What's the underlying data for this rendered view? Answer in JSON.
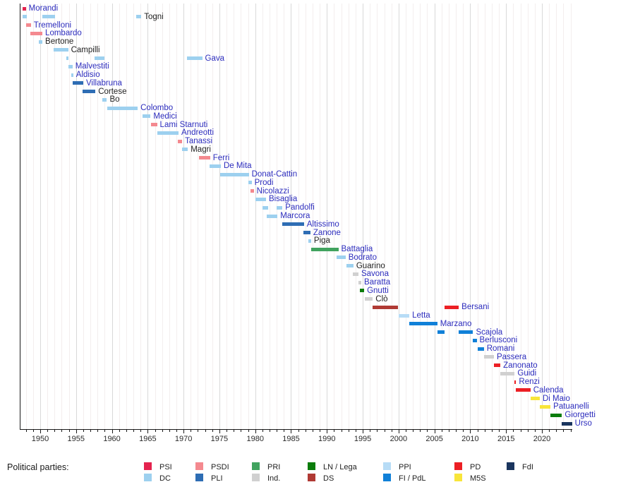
{
  "legend": {
    "heading": "Political parties:",
    "rows": [
      [
        "PSI",
        "PSDI",
        "PRI",
        "LN",
        "PPI",
        "PD",
        "FdI"
      ],
      [
        "DC",
        "PLI",
        "IND",
        "DS",
        "FI",
        "M5S"
      ]
    ]
  },
  "chart_data": {
    "type": "timeline",
    "title": "",
    "xlabel": "",
    "ylabel": "",
    "axis": {
      "year_start": 1947.2,
      "year_end": 2024.2,
      "tick_years": [
        1950,
        1955,
        1960,
        1965,
        1970,
        1975,
        1980,
        1985,
        1990,
        1995,
        2000,
        2005,
        2010,
        2015,
        2020
      ],
      "minor_tick_step": 1,
      "grid": "vertical-yearly"
    },
    "parties": {
      "PSI": {
        "label": "PSI",
        "color": "#e4234e"
      },
      "PSDI": {
        "label": "PSDI",
        "color": "#f4898f"
      },
      "PRI": {
        "label": "PRI",
        "color": "#41a35f"
      },
      "LN": {
        "label": "LN / Lega",
        "color": "#0b7c0b"
      },
      "PPI": {
        "label": "PPI",
        "color": "#b7dcf6"
      },
      "PD": {
        "label": "PD",
        "color": "#ec1f24"
      },
      "FdI": {
        "label": "FdI",
        "color": "#1a355e"
      },
      "DC": {
        "label": "DC",
        "color": "#9dd0ef"
      },
      "PLI": {
        "label": "PLI",
        "color": "#2e6db4"
      },
      "IND": {
        "label": "Ind.",
        "color": "#d0d0d0"
      },
      "DS": {
        "label": "DS",
        "color": "#b03a34"
      },
      "FI": {
        "label": "FI / PdL",
        "color": "#1080d8"
      },
      "M5S": {
        "label": "M5S",
        "color": "#f8e53a"
      }
    },
    "ministers": [
      {
        "name": "Morandi",
        "link": true,
        "terms": [
          {
            "start": 1947.5,
            "end": 1948.0,
            "party": "PSI"
          }
        ]
      },
      {
        "name": "Togni",
        "link": false,
        "terms": [
          {
            "start": 1947.5,
            "end": 1948.1,
            "party": "DC"
          },
          {
            "start": 1950.3,
            "end": 1952.1,
            "party": "DC"
          },
          {
            "start": 1963.4,
            "end": 1964.1,
            "party": "DC"
          }
        ]
      },
      {
        "name": "Tremelloni",
        "link": true,
        "terms": [
          {
            "start": 1948.0,
            "end": 1948.7,
            "party": "PSDI"
          }
        ]
      },
      {
        "name": "Lombardo",
        "link": true,
        "terms": [
          {
            "start": 1948.6,
            "end": 1950.3,
            "party": "PSDI"
          }
        ]
      },
      {
        "name": "Bertone",
        "link": false,
        "terms": [
          {
            "start": 1949.8,
            "end": 1950.3,
            "party": "DC"
          }
        ]
      },
      {
        "name": "Campilli",
        "link": false,
        "terms": [
          {
            "start": 1951.9,
            "end": 1953.9,
            "party": "DC"
          }
        ]
      },
      {
        "name": "Gava",
        "link": true,
        "terms": [
          {
            "start": 1953.6,
            "end": 1953.9,
            "party": "DC"
          },
          {
            "start": 1957.6,
            "end": 1959.0,
            "party": "DC"
          },
          {
            "start": 1970.5,
            "end": 1972.6,
            "party": "DC"
          }
        ]
      },
      {
        "name": "Malvestiti",
        "link": true,
        "terms": [
          {
            "start": 1953.9,
            "end": 1954.5,
            "party": "DC"
          }
        ]
      },
      {
        "name": "Aldisio",
        "link": true,
        "terms": [
          {
            "start": 1954.3,
            "end": 1954.6,
            "party": "DC"
          }
        ]
      },
      {
        "name": "Villabruna",
        "link": true,
        "terms": [
          {
            "start": 1954.5,
            "end": 1956.0,
            "party": "PLI"
          }
        ]
      },
      {
        "name": "Cortese",
        "link": false,
        "terms": [
          {
            "start": 1955.9,
            "end": 1957.7,
            "party": "PLI"
          }
        ]
      },
      {
        "name": "Bo",
        "link": false,
        "terms": [
          {
            "start": 1958.7,
            "end": 1959.3,
            "party": "DC"
          }
        ]
      },
      {
        "name": "Colombo",
        "link": true,
        "terms": [
          {
            "start": 1959.4,
            "end": 1963.6,
            "party": "DC"
          }
        ]
      },
      {
        "name": "Medici",
        "link": true,
        "terms": [
          {
            "start": 1964.3,
            "end": 1965.4,
            "party": "DC"
          }
        ]
      },
      {
        "name": "Lami Starnuti",
        "link": true,
        "terms": [
          {
            "start": 1965.5,
            "end": 1966.3,
            "party": "PSDI"
          }
        ]
      },
      {
        "name": "Andreotti",
        "link": true,
        "terms": [
          {
            "start": 1966.3,
            "end": 1969.3,
            "party": "DC"
          }
        ]
      },
      {
        "name": "Tanassi",
        "link": true,
        "terms": [
          {
            "start": 1969.2,
            "end": 1969.8,
            "party": "PSDI"
          }
        ]
      },
      {
        "name": "Magri",
        "link": false,
        "terms": [
          {
            "start": 1969.8,
            "end": 1970.6,
            "party": "DC"
          }
        ]
      },
      {
        "name": "Ferri",
        "link": true,
        "terms": [
          {
            "start": 1972.2,
            "end": 1973.7,
            "party": "PSDI"
          }
        ]
      },
      {
        "name": "De Mita",
        "link": true,
        "terms": [
          {
            "start": 1973.6,
            "end": 1975.2,
            "party": "DC"
          }
        ]
      },
      {
        "name": "Donat-Cattin",
        "link": true,
        "terms": [
          {
            "start": 1975.1,
            "end": 1979.1,
            "party": "DC"
          }
        ]
      },
      {
        "name": "Prodi",
        "link": true,
        "terms": [
          {
            "start": 1979.0,
            "end": 1979.5,
            "party": "DC"
          }
        ]
      },
      {
        "name": "Nicolazzi",
        "link": true,
        "terms": [
          {
            "start": 1979.3,
            "end": 1979.8,
            "party": "PSDI"
          }
        ]
      },
      {
        "name": "Bisaglia",
        "link": true,
        "terms": [
          {
            "start": 1980.0,
            "end": 1981.5,
            "party": "DC"
          }
        ]
      },
      {
        "name": "Pandolfi",
        "link": true,
        "terms": [
          {
            "start": 1981.0,
            "end": 1981.8,
            "party": "DC"
          },
          {
            "start": 1983.0,
            "end": 1983.8,
            "party": "DC"
          }
        ]
      },
      {
        "name": "Marcora",
        "link": true,
        "terms": [
          {
            "start": 1981.6,
            "end": 1983.1,
            "party": "DC"
          }
        ]
      },
      {
        "name": "Altissimo",
        "link": true,
        "terms": [
          {
            "start": 1983.8,
            "end": 1986.8,
            "party": "PLI"
          }
        ]
      },
      {
        "name": "Zanone",
        "link": true,
        "terms": [
          {
            "start": 1986.7,
            "end": 1987.7,
            "party": "PLI"
          }
        ]
      },
      {
        "name": "Piga",
        "link": false,
        "terms": [
          {
            "start": 1987.4,
            "end": 1987.8,
            "party": "DC"
          }
        ]
      },
      {
        "name": "Battaglia",
        "link": true,
        "terms": [
          {
            "start": 1987.8,
            "end": 1991.6,
            "party": "PRI"
          }
        ]
      },
      {
        "name": "Bodrato",
        "link": true,
        "terms": [
          {
            "start": 1991.4,
            "end": 1992.6,
            "party": "DC"
          }
        ]
      },
      {
        "name": "Guarino",
        "link": false,
        "terms": [
          {
            "start": 1992.7,
            "end": 1993.7,
            "party": "DC"
          }
        ]
      },
      {
        "name": "Savona",
        "link": true,
        "terms": [
          {
            "start": 1993.6,
            "end": 1994.4,
            "party": "IND"
          }
        ]
      },
      {
        "name": "Baratta",
        "link": true,
        "terms": [
          {
            "start": 1994.4,
            "end": 1994.8,
            "party": "IND"
          }
        ]
      },
      {
        "name": "Gnutti",
        "link": true,
        "terms": [
          {
            "start": 1994.6,
            "end": 1995.2,
            "party": "LN"
          }
        ]
      },
      {
        "name": "Clò",
        "link": false,
        "terms": [
          {
            "start": 1995.3,
            "end": 1996.4,
            "party": "IND"
          }
        ]
      },
      {
        "name": "Bersani",
        "link": true,
        "terms": [
          {
            "start": 1996.4,
            "end": 1999.9,
            "party": "DS"
          },
          {
            "start": 2006.4,
            "end": 2008.4,
            "party": "PD"
          }
        ]
      },
      {
        "name": "Letta",
        "link": true,
        "terms": [
          {
            "start": 2000.0,
            "end": 2001.5,
            "party": "PPI"
          }
        ]
      },
      {
        "name": "Marzano",
        "link": true,
        "terms": [
          {
            "start": 2001.5,
            "end": 2005.4,
            "party": "FI"
          }
        ]
      },
      {
        "name": "Scajola",
        "link": true,
        "terms": [
          {
            "start": 2005.4,
            "end": 2006.4,
            "party": "FI"
          },
          {
            "start": 2008.4,
            "end": 2010.4,
            "party": "FI"
          }
        ]
      },
      {
        "name": "Berlusconi",
        "link": true,
        "terms": [
          {
            "start": 2010.4,
            "end": 2010.9,
            "party": "FI"
          }
        ]
      },
      {
        "name": "Romani",
        "link": true,
        "terms": [
          {
            "start": 2011.0,
            "end": 2011.9,
            "party": "FI"
          }
        ]
      },
      {
        "name": "Passera",
        "link": true,
        "terms": [
          {
            "start": 2011.9,
            "end": 2013.3,
            "party": "IND"
          }
        ]
      },
      {
        "name": "Zanonato",
        "link": true,
        "terms": [
          {
            "start": 2013.3,
            "end": 2014.2,
            "party": "PD"
          }
        ]
      },
      {
        "name": "Guidi",
        "link": true,
        "terms": [
          {
            "start": 2014.2,
            "end": 2016.2,
            "party": "IND"
          }
        ]
      },
      {
        "name": "Renzi",
        "link": true,
        "terms": [
          {
            "start": 2016.2,
            "end": 2016.4,
            "party": "PD"
          }
        ]
      },
      {
        "name": "Calenda",
        "link": true,
        "terms": [
          {
            "start": 2016.4,
            "end": 2018.4,
            "party": "PD"
          }
        ]
      },
      {
        "name": "Di Maio",
        "link": true,
        "terms": [
          {
            "start": 2018.4,
            "end": 2019.7,
            "party": "M5S"
          }
        ]
      },
      {
        "name": "Patuanelli",
        "link": true,
        "terms": [
          {
            "start": 2019.7,
            "end": 2021.2,
            "party": "M5S"
          }
        ]
      },
      {
        "name": "Giorgetti",
        "link": true,
        "terms": [
          {
            "start": 2021.2,
            "end": 2022.8,
            "party": "LN"
          }
        ]
      },
      {
        "name": "Urso",
        "link": true,
        "terms": [
          {
            "start": 2022.8,
            "end": 2024.2,
            "party": "FdI"
          }
        ]
      }
    ]
  }
}
